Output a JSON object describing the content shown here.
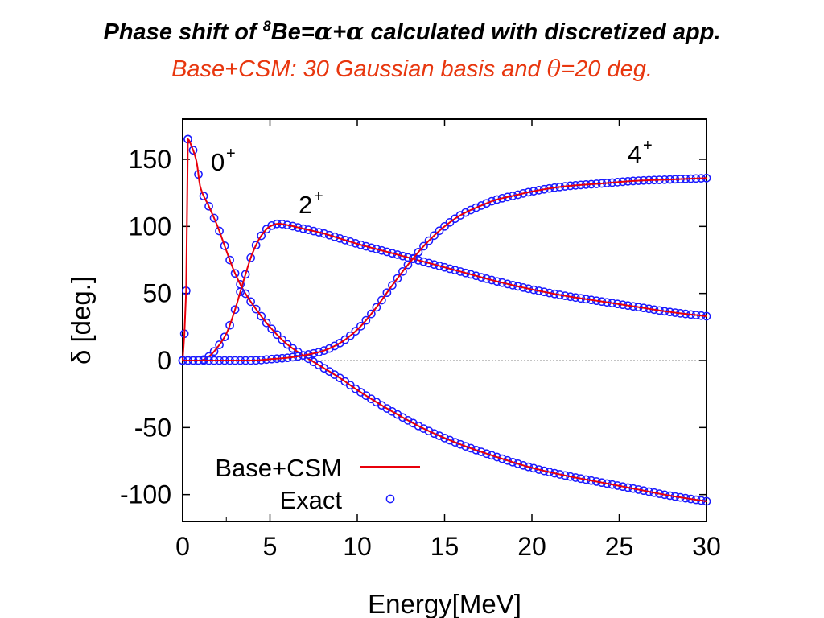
{
  "header": {
    "title_pre": "Phase shift of ",
    "title_mass": "8",
    "title_mid": "Be=",
    "title_alpha1": "α",
    "title_plus": "+",
    "title_alpha2": "α",
    "title_post": " calculated with discretized app.",
    "subtitle_pre": "Base+CSM: 30 Gaussian basis and ",
    "subtitle_theta": "θ",
    "subtitle_post": "=20 deg."
  },
  "colors": {
    "calc": "#e8000b",
    "exact": "#1a1aff",
    "subtitle": "#e8370f"
  },
  "chart_data": {
    "type": "line",
    "title": "",
    "xlabel": "Energy[MeV]",
    "ylabel": "δ [deg.]",
    "xlim": [
      0,
      30
    ],
    "ylim": [
      -120,
      180
    ],
    "xticks": [
      "0",
      "5",
      "10",
      "15",
      "20",
      "25",
      "30"
    ],
    "yticks": [
      "-100",
      "-50",
      "0",
      "50",
      "100",
      "150"
    ],
    "grid": false,
    "zero_line": true,
    "legend": {
      "placement": "bottom-left",
      "entries": [
        {
          "label": "Base+CSM",
          "style": "line"
        },
        {
          "label": "Exact",
          "style": "circle"
        }
      ]
    },
    "curve_labels": [
      {
        "state": "0",
        "sup": "+"
      },
      {
        "state": "2",
        "sup": "+"
      },
      {
        "state": "4",
        "sup": "+"
      }
    ],
    "series": [
      {
        "state": "0+",
        "x": [
          0,
          0.1,
          0.2,
          0.3,
          0.5,
          0.8,
          1,
          1.5,
          2,
          2.5,
          3,
          3.5,
          4,
          5,
          6,
          7,
          8,
          9,
          10,
          12,
          14,
          16,
          18,
          20,
          22,
          24,
          26,
          28,
          30
        ],
        "y": [
          0,
          20,
          52,
          165,
          160,
          148,
          130,
          115,
          100,
          82,
          65,
          52,
          42,
          25,
          12,
          3,
          -5,
          -13,
          -22,
          -38,
          -52,
          -63,
          -72,
          -80,
          -86,
          -91,
          -96,
          -101,
          -105
        ]
      },
      {
        "state": "2+",
        "x": [
          0,
          1,
          1.5,
          2,
          2.5,
          3,
          3.5,
          4,
          4.5,
          5,
          5.5,
          6,
          7,
          8,
          9,
          10,
          12,
          14,
          16,
          18,
          20,
          22,
          24,
          26,
          28,
          30
        ],
        "y": [
          0,
          0,
          3,
          10,
          20,
          38,
          60,
          80,
          93,
          100,
          102,
          101,
          98,
          95,
          91,
          87,
          80,
          73,
          66,
          59,
          53,
          48,
          44,
          40,
          36,
          33
        ]
      },
      {
        "state": "4+",
        "x": [
          0,
          2,
          4,
          5,
          6,
          7,
          8,
          9,
          10,
          11,
          12,
          13,
          14,
          15,
          16,
          17,
          18,
          19,
          20,
          22,
          24,
          26,
          28,
          30
        ],
        "y": [
          0,
          0,
          0,
          1,
          2,
          4,
          7,
          13,
          23,
          38,
          56,
          73,
          88,
          100,
          109,
          115,
          120,
          123,
          126,
          130,
          132,
          134,
          135,
          136
        ]
      }
    ]
  }
}
